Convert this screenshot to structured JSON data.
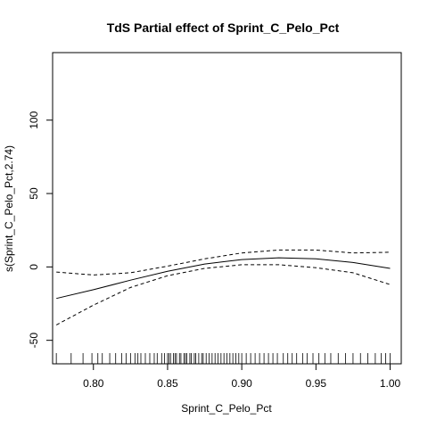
{
  "chart_data": {
    "type": "line",
    "title": "TdS Partial effect of Sprint_C_Pelo_Pct",
    "xlabel": "Sprint_C_Pelo_Pct",
    "ylabel": "s(Sprint_C_Pelo_Pct,2.74)",
    "xlim": [
      0.7725,
      1.0075
    ],
    "ylim": [
      -66,
      146
    ],
    "x_ticks": [
      "0.80",
      "0.85",
      "0.90",
      "0.95",
      "1.00"
    ],
    "x_tick_values": [
      0.8,
      0.85,
      0.9,
      0.95,
      1.0
    ],
    "y_ticks": [
      "-50",
      "0",
      "50",
      "100"
    ],
    "y_tick_values": [
      -50,
      0,
      50,
      100
    ],
    "grid": false,
    "series": [
      {
        "style": "solid",
        "x": [
          0.775,
          0.8,
          0.825,
          0.85,
          0.875,
          0.9,
          0.925,
          0.95,
          0.975,
          1.0
        ],
        "y": [
          -21.5,
          -15.5,
          -9.0,
          -3.0,
          2.0,
          5.0,
          6.2,
          5.5,
          3.0,
          -1.0
        ]
      },
      {
        "style": "dashed",
        "x": [
          0.775,
          0.8,
          0.825,
          0.85,
          0.875,
          0.9,
          0.925,
          0.95,
          0.975,
          1.0
        ],
        "y": [
          -3.5,
          -5.5,
          -4.0,
          0.5,
          5.5,
          9.5,
          11.5,
          11.5,
          9.5,
          10.0
        ]
      },
      {
        "style": "dashed",
        "x": [
          0.775,
          0.8,
          0.825,
          0.85,
          0.875,
          0.9,
          0.925,
          0.95,
          0.975,
          1.0
        ],
        "y": [
          -39.5,
          -26.0,
          -14.0,
          -6.0,
          -1.0,
          1.5,
          1.5,
          -0.5,
          -4.0,
          -12.0
        ]
      }
    ],
    "rug": [
      0.775,
      0.785,
      0.793,
      0.799,
      0.803,
      0.806,
      0.811,
      0.815,
      0.819,
      0.822,
      0.825,
      0.828,
      0.83,
      0.832,
      0.835,
      0.838,
      0.841,
      0.843,
      0.846,
      0.848,
      0.85,
      0.851,
      0.852,
      0.854,
      0.855,
      0.856,
      0.858,
      0.859,
      0.861,
      0.862,
      0.863,
      0.865,
      0.866,
      0.868,
      0.869,
      0.871,
      0.873,
      0.874,
      0.876,
      0.878,
      0.88,
      0.882,
      0.884,
      0.886,
      0.888,
      0.89,
      0.892,
      0.894,
      0.896,
      0.898,
      0.9,
      0.903,
      0.906,
      0.909,
      0.912,
      0.915,
      0.918,
      0.921,
      0.924,
      0.928,
      0.931,
      0.934,
      0.937,
      0.941,
      0.944,
      0.948,
      0.952,
      0.956,
      0.96,
      0.965,
      0.97,
      0.975,
      0.98,
      0.985,
      0.99,
      0.994,
      0.997,
      1.0
    ]
  }
}
